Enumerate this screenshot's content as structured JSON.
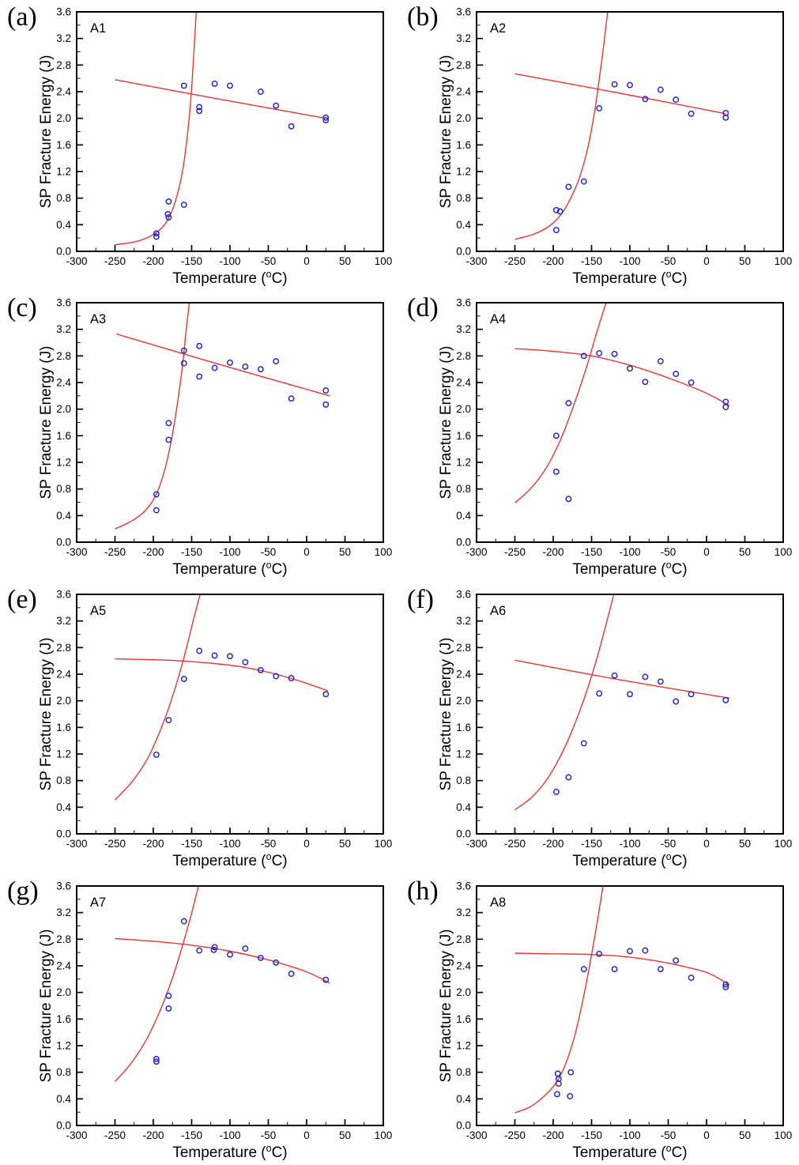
{
  "figure_name": "sp-fracture-energy-vs-temperature-panels",
  "colors": {
    "point_stroke": "#2828c8",
    "curve_stroke": "#ee3333",
    "axis": "#000000",
    "background": "#ffffff",
    "label_text": "#000000"
  },
  "axes": {
    "xlabel_parts": {
      "prefix": "Temperature (",
      "sup": "o",
      "suffix": "C)"
    },
    "ylabel": "SP Fracture Energy (J)",
    "xlim": [
      -300,
      100
    ],
    "ylim": [
      0,
      3.6
    ],
    "xtick_step": 50,
    "xminor_step": 25,
    "ytick_step": 0.4,
    "yminor_step": 0.2,
    "xtick_labels": [
      "-300",
      "-250",
      "-200",
      "-150",
      "-100",
      "-50",
      "0",
      "50",
      "100"
    ],
    "ytick_labels": [
      "0.0",
      "0.4",
      "0.8",
      "1.2",
      "1.6",
      "2.0",
      "2.4",
      "2.8",
      "3.2",
      "3.6"
    ],
    "grid": false,
    "legend": "none"
  },
  "chart_data": [
    {
      "type": "scatter",
      "panel_letter": "(a)",
      "label": "A1",
      "points": [
        [
          -196,
          0.27
        ],
        [
          -196,
          0.22
        ],
        [
          -180,
          0.75
        ],
        [
          -181,
          0.56
        ],
        [
          -180,
          0.51
        ],
        [
          -160,
          0.7
        ],
        [
          -160,
          2.49
        ],
        [
          -140,
          2.17
        ],
        [
          -140,
          2.11
        ],
        [
          -120,
          2.52
        ],
        [
          -100,
          2.49
        ],
        [
          -60,
          2.4
        ],
        [
          -40,
          2.19
        ],
        [
          -20,
          1.88
        ],
        [
          25,
          2.01
        ],
        [
          25,
          1.97
        ]
      ],
      "curves": {
        "brittle": [
          [
            -250,
            0.1
          ],
          [
            -225,
            0.14
          ],
          [
            -205,
            0.22
          ],
          [
            -190,
            0.34
          ],
          [
            -180,
            0.5
          ],
          [
            -170,
            0.8
          ],
          [
            -162,
            1.2
          ],
          [
            -156,
            1.7
          ],
          [
            -151,
            2.3
          ],
          [
            -147,
            3.0
          ],
          [
            -144,
            3.6
          ]
        ],
        "ductile": [
          [
            -250,
            2.58
          ],
          [
            -110,
            2.28
          ],
          [
            25,
            2.0
          ]
        ]
      }
    },
    {
      "type": "scatter",
      "panel_letter": "(b)",
      "label": "A2",
      "points": [
        [
          -196,
          0.62
        ],
        [
          -191,
          0.6
        ],
        [
          -196,
          0.32
        ],
        [
          -180,
          0.97
        ],
        [
          -160,
          1.05
        ],
        [
          -140,
          2.15
        ],
        [
          -120,
          2.51
        ],
        [
          -100,
          2.5
        ],
        [
          -80,
          2.29
        ],
        [
          -60,
          2.43
        ],
        [
          -40,
          2.28
        ],
        [
          -20,
          2.07
        ],
        [
          25,
          2.08
        ],
        [
          25,
          2.01
        ]
      ],
      "curves": {
        "brittle": [
          [
            -250,
            0.18
          ],
          [
            -225,
            0.26
          ],
          [
            -205,
            0.38
          ],
          [
            -190,
            0.55
          ],
          [
            -178,
            0.78
          ],
          [
            -166,
            1.1
          ],
          [
            -155,
            1.55
          ],
          [
            -146,
            2.1
          ],
          [
            -138,
            2.75
          ],
          [
            -131,
            3.4
          ],
          [
            -129,
            3.6
          ]
        ],
        "ductile": [
          [
            -250,
            2.67
          ],
          [
            -110,
            2.37
          ],
          [
            25,
            2.07
          ]
        ]
      }
    },
    {
      "type": "scatter",
      "panel_letter": "(c)",
      "label": "A3",
      "points": [
        [
          -196,
          0.72
        ],
        [
          -196,
          0.48
        ],
        [
          -180,
          1.79
        ],
        [
          -180,
          1.54
        ],
        [
          -160,
          2.88
        ],
        [
          -160,
          2.69
        ],
        [
          -140,
          2.95
        ],
        [
          -140,
          2.49
        ],
        [
          -120,
          2.62
        ],
        [
          -100,
          2.7
        ],
        [
          -80,
          2.64
        ],
        [
          -60,
          2.6
        ],
        [
          -40,
          2.72
        ],
        [
          -20,
          2.16
        ],
        [
          25,
          2.28
        ],
        [
          25,
          2.07
        ]
      ],
      "curves": {
        "brittle": [
          [
            -250,
            0.2
          ],
          [
            -228,
            0.32
          ],
          [
            -210,
            0.48
          ],
          [
            -197,
            0.7
          ],
          [
            -186,
            1.05
          ],
          [
            -177,
            1.5
          ],
          [
            -169,
            2.05
          ],
          [
            -162,
            2.65
          ],
          [
            -157,
            3.2
          ],
          [
            -153,
            3.6
          ]
        ],
        "ductile": [
          [
            -248,
            3.13
          ],
          [
            -110,
            2.66
          ],
          [
            30,
            2.2
          ]
        ]
      }
    },
    {
      "type": "scatter",
      "panel_letter": "(d)",
      "label": "A4",
      "points": [
        [
          -196,
          1.6
        ],
        [
          -196,
          1.06
        ],
        [
          -180,
          2.09
        ],
        [
          -180,
          0.65
        ],
        [
          -160,
          2.8
        ],
        [
          -140,
          2.84
        ],
        [
          -120,
          2.83
        ],
        [
          -100,
          2.61
        ],
        [
          -80,
          2.41
        ],
        [
          -60,
          2.72
        ],
        [
          -40,
          2.53
        ],
        [
          -20,
          2.4
        ],
        [
          25,
          2.11
        ],
        [
          25,
          2.03
        ]
      ],
      "curves": {
        "brittle": [
          [
            -250,
            0.59
          ],
          [
            -230,
            0.8
          ],
          [
            -210,
            1.1
          ],
          [
            -190,
            1.55
          ],
          [
            -172,
            2.1
          ],
          [
            -156,
            2.65
          ],
          [
            -142,
            3.2
          ],
          [
            -131,
            3.6
          ]
        ],
        "ductile": [
          [
            -250,
            2.91
          ],
          [
            -200,
            2.87
          ],
          [
            -150,
            2.8
          ],
          [
            -100,
            2.66
          ],
          [
            -50,
            2.47
          ],
          [
            0,
            2.24
          ],
          [
            30,
            2.05
          ]
        ]
      }
    },
    {
      "type": "scatter",
      "panel_letter": "(e)",
      "label": "A5",
      "points": [
        [
          -196,
          1.19
        ],
        [
          -180,
          1.71
        ],
        [
          -160,
          2.33
        ],
        [
          -140,
          2.75
        ],
        [
          -120,
          2.68
        ],
        [
          -100,
          2.67
        ],
        [
          -80,
          2.58
        ],
        [
          -60,
          2.46
        ],
        [
          -40,
          2.37
        ],
        [
          -20,
          2.34
        ],
        [
          25,
          2.1
        ]
      ],
      "curves": {
        "brittle": [
          [
            -250,
            0.51
          ],
          [
            -228,
            0.78
          ],
          [
            -208,
            1.12
          ],
          [
            -190,
            1.58
          ],
          [
            -174,
            2.1
          ],
          [
            -160,
            2.65
          ],
          [
            -148,
            3.2
          ],
          [
            -139,
            3.6
          ]
        ],
        "ductile": [
          [
            -250,
            2.63
          ],
          [
            -180,
            2.61
          ],
          [
            -130,
            2.57
          ],
          [
            -90,
            2.52
          ],
          [
            -50,
            2.43
          ],
          [
            -10,
            2.3
          ],
          [
            28,
            2.15
          ]
        ]
      }
    },
    {
      "type": "scatter",
      "panel_letter": "(f)",
      "label": "A6",
      "points": [
        [
          -196,
          0.63
        ],
        [
          -180,
          0.85
        ],
        [
          -160,
          1.36
        ],
        [
          -140,
          2.11
        ],
        [
          -120,
          2.38
        ],
        [
          -100,
          2.1
        ],
        [
          -80,
          2.36
        ],
        [
          -60,
          2.29
        ],
        [
          -40,
          1.99
        ],
        [
          -20,
          2.1
        ],
        [
          25,
          2.01
        ]
      ],
      "curves": {
        "brittle": [
          [
            -250,
            0.36
          ],
          [
            -228,
            0.55
          ],
          [
            -208,
            0.82
          ],
          [
            -190,
            1.18
          ],
          [
            -173,
            1.62
          ],
          [
            -157,
            2.12
          ],
          [
            -142,
            2.68
          ],
          [
            -128,
            3.28
          ],
          [
            -121,
            3.6
          ]
        ],
        "ductile": [
          [
            -250,
            2.61
          ],
          [
            -110,
            2.31
          ],
          [
            30,
            2.04
          ]
        ]
      }
    },
    {
      "type": "scatter",
      "panel_letter": "(g)",
      "label": "A7",
      "points": [
        [
          -196,
          1.0
        ],
        [
          -196,
          0.96
        ],
        [
          -180,
          1.95
        ],
        [
          -180,
          1.76
        ],
        [
          -160,
          3.07
        ],
        [
          -140,
          2.63
        ],
        [
          -120,
          2.68
        ],
        [
          -121,
          2.64
        ],
        [
          -100,
          2.57
        ],
        [
          -80,
          2.66
        ],
        [
          -60,
          2.52
        ],
        [
          -40,
          2.45
        ],
        [
          -20,
          2.28
        ],
        [
          25,
          2.19
        ]
      ],
      "curves": {
        "brittle": [
          [
            -250,
            0.66
          ],
          [
            -230,
            0.92
          ],
          [
            -211,
            1.25
          ],
          [
            -194,
            1.65
          ],
          [
            -178,
            2.12
          ],
          [
            -164,
            2.62
          ],
          [
            -151,
            3.15
          ],
          [
            -141,
            3.6
          ]
        ],
        "ductile": [
          [
            -250,
            2.81
          ],
          [
            -200,
            2.77
          ],
          [
            -150,
            2.71
          ],
          [
            -100,
            2.62
          ],
          [
            -50,
            2.49
          ],
          [
            0,
            2.31
          ],
          [
            30,
            2.14
          ]
        ]
      }
    },
    {
      "type": "scatter",
      "panel_letter": "(h)",
      "label": "A8",
      "points": [
        [
          -194,
          0.78
        ],
        [
          -177,
          0.8
        ],
        [
          -193,
          0.7
        ],
        [
          -193,
          0.63
        ],
        [
          -195,
          0.47
        ],
        [
          -178,
          0.44
        ],
        [
          -160,
          2.35
        ],
        [
          -140,
          2.58
        ],
        [
          -120,
          2.35
        ],
        [
          -100,
          2.62
        ],
        [
          -80,
          2.63
        ],
        [
          -60,
          2.35
        ],
        [
          -40,
          2.48
        ],
        [
          -20,
          2.22
        ],
        [
          25,
          2.12
        ],
        [
          25,
          2.08
        ]
      ],
      "curves": {
        "brittle": [
          [
            -250,
            0.19
          ],
          [
            -230,
            0.28
          ],
          [
            -212,
            0.44
          ],
          [
            -197,
            0.63
          ],
          [
            -184,
            0.92
          ],
          [
            -172,
            1.35
          ],
          [
            -161,
            1.9
          ],
          [
            -151,
            2.5
          ],
          [
            -142,
            3.1
          ],
          [
            -135,
            3.6
          ]
        ],
        "ductile": [
          [
            -250,
            2.59
          ],
          [
            -200,
            2.58
          ],
          [
            -150,
            2.57
          ],
          [
            -100,
            2.53
          ],
          [
            -50,
            2.44
          ],
          [
            0,
            2.3
          ],
          [
            30,
            2.11
          ]
        ]
      }
    }
  ]
}
